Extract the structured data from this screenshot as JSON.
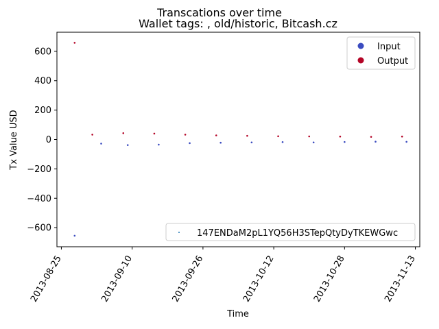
{
  "chart_data": {
    "type": "scatter",
    "suptitle": "Transcations over time",
    "title": "Wallet tags: , old/historic, Bitcash.cz",
    "xlabel": "Time",
    "ylabel": "Tx Value USD",
    "x_type": "date",
    "xlim": [
      "2013-08-24",
      "2013-11-14"
    ],
    "ylim": [
      -730,
      730
    ],
    "xticks": [
      "2013-08-25",
      "2013-09-10",
      "2013-09-26",
      "2013-10-12",
      "2013-10-28",
      "2013-11-13"
    ],
    "yticks": [
      -600,
      -400,
      -200,
      0,
      200,
      400,
      600
    ],
    "legend_position": "upper right",
    "legend2_position": "lower right",
    "series": [
      {
        "name": "Input",
        "color": "#3b4cc0",
        "points": [
          {
            "x": "2013-08-28",
            "y": -655
          },
          {
            "x": "2013-09-03",
            "y": -28
          },
          {
            "x": "2013-09-09",
            "y": -38
          },
          {
            "x": "2013-09-16",
            "y": -35
          },
          {
            "x": "2013-09-23",
            "y": -25
          },
          {
            "x": "2013-09-30",
            "y": -22
          },
          {
            "x": "2013-10-07",
            "y": -20
          },
          {
            "x": "2013-10-14",
            "y": -18
          },
          {
            "x": "2013-10-21",
            "y": -20
          },
          {
            "x": "2013-10-28",
            "y": -17
          },
          {
            "x": "2013-11-04",
            "y": -15
          },
          {
            "x": "2013-11-11",
            "y": -16
          }
        ]
      },
      {
        "name": "Output",
        "color": "#b40426",
        "points": [
          {
            "x": "2013-08-28",
            "y": 658
          },
          {
            "x": "2013-09-01",
            "y": 33
          },
          {
            "x": "2013-09-08",
            "y": 43
          },
          {
            "x": "2013-09-15",
            "y": 40
          },
          {
            "x": "2013-09-22",
            "y": 33
          },
          {
            "x": "2013-09-29",
            "y": 28
          },
          {
            "x": "2013-10-06",
            "y": 25
          },
          {
            "x": "2013-10-13",
            "y": 22
          },
          {
            "x": "2013-10-20",
            "y": 21
          },
          {
            "x": "2013-10-27",
            "y": 20
          },
          {
            "x": "2013-11-03",
            "y": 18
          },
          {
            "x": "2013-11-10",
            "y": 20
          }
        ]
      }
    ],
    "legend2_label": "147ENDaM2pL1YQ56H3STepQtyDyTKEWGwc",
    "legend2_color": "#1f77b4"
  }
}
